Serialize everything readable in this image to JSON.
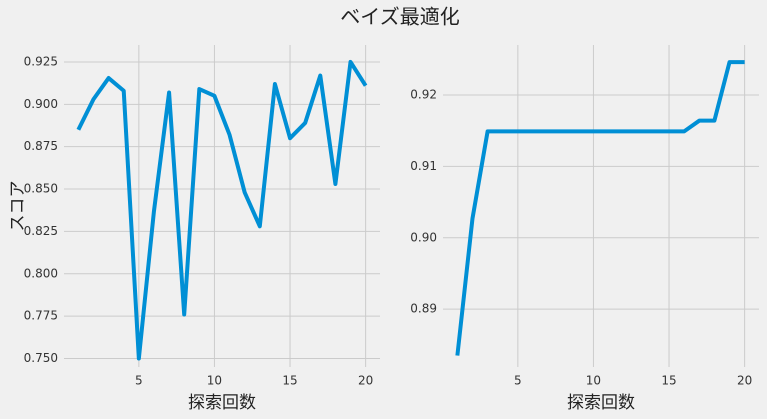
{
  "title": "ベイズ最適化",
  "chart_data": [
    {
      "type": "line",
      "xlabel": "探索回数",
      "ylabel": "スコア",
      "x": [
        1,
        2,
        3,
        4,
        5,
        6,
        7,
        8,
        9,
        10,
        11,
        12,
        13,
        14,
        15,
        16,
        17,
        18,
        19,
        20
      ],
      "series": [
        {
          "color": "#008fd5",
          "values": [
            0.885,
            0.903,
            0.9155,
            0.908,
            0.75,
            0.837,
            0.907,
            0.776,
            0.909,
            0.905,
            0.882,
            0.848,
            0.828,
            0.912,
            0.88,
            0.889,
            0.917,
            0.853,
            0.925,
            0.911
          ]
        }
      ],
      "xlim": [
        0.05,
        20.95
      ],
      "ylim": [
        0.745,
        0.935
      ],
      "xticks": [
        5,
        10,
        15,
        20
      ],
      "yticks": [
        {
          "value": 0.75,
          "label": "0.750"
        },
        {
          "value": 0.775,
          "label": "0.775"
        },
        {
          "value": 0.8,
          "label": "0.800"
        },
        {
          "value": 0.825,
          "label": "0.825"
        },
        {
          "value": 0.85,
          "label": "0.850"
        },
        {
          "value": 0.875,
          "label": "0.875"
        },
        {
          "value": 0.9,
          "label": "0.900"
        },
        {
          "value": 0.925,
          "label": "0.925"
        }
      ],
      "grid": true
    },
    {
      "type": "line",
      "xlabel": "探索回数",
      "x": [
        1,
        2,
        3,
        4,
        5,
        6,
        7,
        8,
        9,
        10,
        11,
        12,
        13,
        14,
        15,
        16,
        17,
        18,
        19,
        20
      ],
      "series": [
        {
          "color": "#008fd5",
          "values": [
            0.8835,
            0.9027,
            0.9149,
            0.9149,
            0.9149,
            0.9149,
            0.9149,
            0.9149,
            0.9149,
            0.9149,
            0.9149,
            0.9149,
            0.9149,
            0.9149,
            0.9149,
            0.9149,
            0.9164,
            0.9164,
            0.9246,
            0.9246
          ]
        }
      ],
      "xlim": [
        0.05,
        20.95
      ],
      "ylim": [
        0.8819,
        0.927
      ],
      "xticks": [
        5,
        10,
        15,
        20
      ],
      "yticks": [
        {
          "value": 0.89,
          "label": "0.89"
        },
        {
          "value": 0.9,
          "label": "0.90"
        },
        {
          "value": 0.91,
          "label": "0.91"
        },
        {
          "value": 0.92,
          "label": "0.92"
        }
      ],
      "grid": true
    }
  ]
}
